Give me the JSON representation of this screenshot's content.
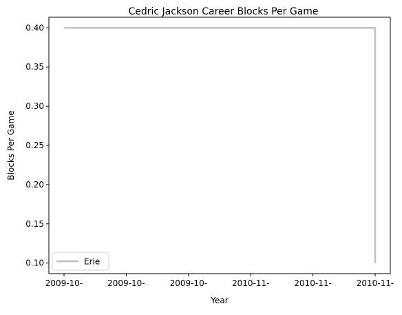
{
  "chart_data": {
    "type": "line",
    "title": "Cedric Jackson Career Blocks Per Game",
    "xlabel": "Year",
    "ylabel": "Blocks Per Game",
    "x_ticks": [
      "2009-10-",
      "2009-10-",
      "2009-10-",
      "2010-11-",
      "2010-11-",
      "2010-11-"
    ],
    "y_ticks": [
      "0.10",
      "0.15",
      "0.20",
      "0.25",
      "0.30",
      "0.35",
      "0.40"
    ],
    "ylim": [
      0.0865,
      0.4135
    ],
    "series": [
      {
        "name": "Erie",
        "color": "#bfbfbf",
        "points": [
          {
            "x": "2009-10-",
            "y": 0.4
          },
          {
            "x": "2010-11-",
            "y": 0.4
          },
          {
            "x": "2010-11-",
            "y": 0.1
          }
        ]
      }
    ],
    "grid": false,
    "legend_position": "lower left"
  }
}
